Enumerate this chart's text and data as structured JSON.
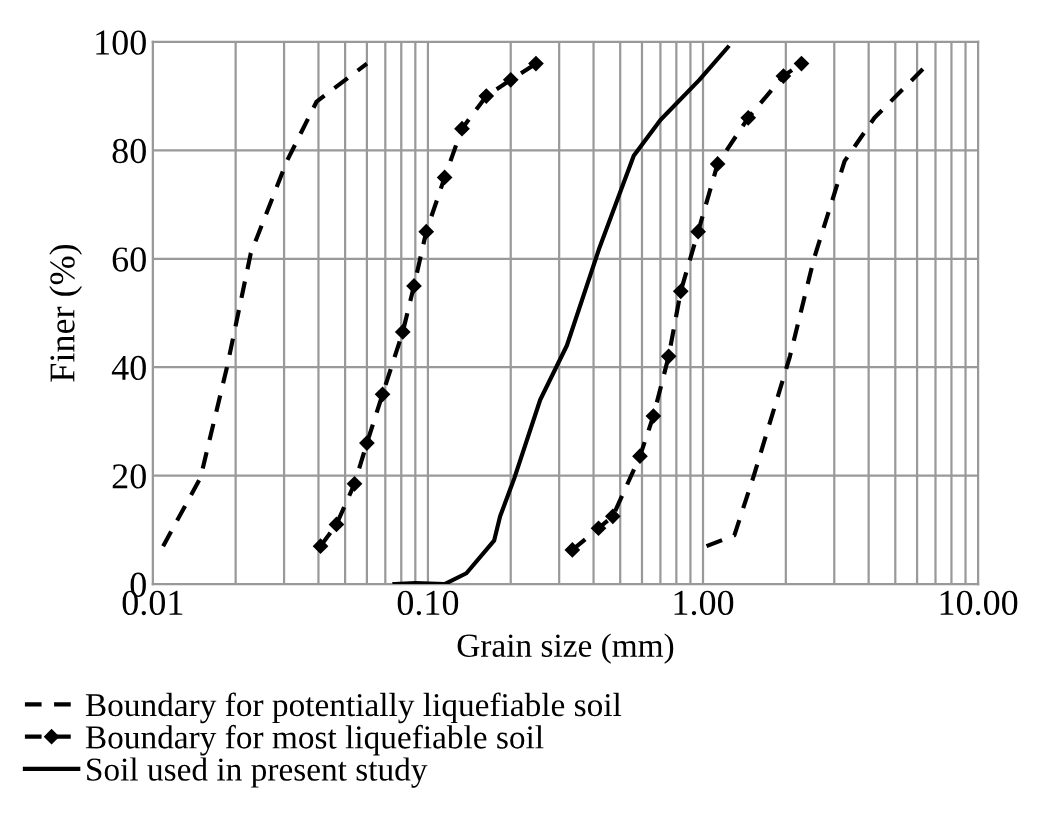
{
  "chart_data": {
    "type": "line",
    "xlabel": "Grain size (mm)",
    "ylabel": "Finer (%)",
    "log": "x",
    "xlim": [
      0.01,
      10
    ],
    "ylim": [
      0,
      100
    ],
    "xticks": [
      {
        "value": 0.01,
        "label": "0.01"
      },
      {
        "value": 0.02,
        "label": null
      },
      {
        "value": 0.03,
        "label": null
      },
      {
        "value": 0.04,
        "label": null
      },
      {
        "value": 0.05,
        "label": null
      },
      {
        "value": 0.06,
        "label": null
      },
      {
        "value": 0.07,
        "label": null
      },
      {
        "value": 0.08,
        "label": null
      },
      {
        "value": 0.09,
        "label": null
      },
      {
        "value": 0.1,
        "label": "0.10"
      },
      {
        "value": 0.2,
        "label": null
      },
      {
        "value": 0.3,
        "label": null
      },
      {
        "value": 0.4,
        "label": null
      },
      {
        "value": 0.5,
        "label": null
      },
      {
        "value": 0.6,
        "label": null
      },
      {
        "value": 0.7,
        "label": null
      },
      {
        "value": 0.8,
        "label": null
      },
      {
        "value": 0.9,
        "label": null
      },
      {
        "value": 1,
        "label": "1.00"
      },
      {
        "value": 2,
        "label": null
      },
      {
        "value": 3,
        "label": null
      },
      {
        "value": 4,
        "label": null
      },
      {
        "value": 5,
        "label": null
      },
      {
        "value": 6,
        "label": null
      },
      {
        "value": 7,
        "label": null
      },
      {
        "value": 8,
        "label": null
      },
      {
        "value": 9,
        "label": null
      },
      {
        "value": 10,
        "label": "10.00"
      }
    ],
    "yticks": [
      0,
      20,
      40,
      60,
      80,
      100
    ],
    "grid": true,
    "legend": "bottom",
    "series": [
      {
        "name": "Boundary for potentially liquefiable soil",
        "color": "#000000",
        "line_style": "dashed",
        "marker": "none",
        "x": [
          0.0109,
          0.0149,
          0.0186,
          0.0227,
          0.0307,
          0.0394,
          0.06
        ],
        "values": [
          7,
          19.6,
          40,
          61,
          78,
          89,
          96
        ]
      },
      {
        "color": "#000000",
        "line_style": "dashed",
        "marker": "none",
        "x": [
          1.03,
          1.3,
          1.53,
          2.07,
          2.53,
          3.27,
          4.2,
          6.3
        ],
        "values": [
          7,
          9,
          20,
          42,
          60,
          78,
          86,
          95
        ]
      },
      {
        "name": "Boundary for most liquefiable soil",
        "color": "#000000",
        "line_style": "dashed",
        "marker": "diamond",
        "x": [
          0.0407,
          0.0465,
          0.0541,
          0.06,
          0.0684,
          0.081,
          0.089,
          0.0986,
          0.115,
          0.133,
          0.163,
          0.2,
          0.247
        ],
        "values": [
          7,
          11,
          18.5,
          26,
          35,
          46.5,
          55,
          65,
          75,
          84,
          90,
          93,
          96
        ]
      },
      {
        "color": "#000000",
        "line_style": "dashed",
        "marker": "diamond",
        "x": [
          0.335,
          0.417,
          0.47,
          0.59,
          0.66,
          0.75,
          0.83,
          0.96,
          1.13,
          1.46,
          1.96,
          2.28
        ],
        "values": [
          6.3,
          10.3,
          12.5,
          23.6,
          31,
          42,
          54,
          65,
          77.5,
          86,
          93.7,
          96
        ]
      },
      {
        "name": "Soil used in present study",
        "color": "#000000",
        "line_style": "solid",
        "marker": "none",
        "x": [
          0.0756,
          0.09,
          0.115,
          0.138,
          0.174,
          0.183,
          0.206,
          0.256,
          0.32,
          0.42,
          0.56,
          0.7,
          0.97,
          1.23
        ],
        "values": [
          0,
          0.2,
          0,
          2,
          8,
          12.5,
          19.5,
          34,
          44,
          62,
          79,
          85.6,
          93,
          99
        ]
      }
    ]
  }
}
